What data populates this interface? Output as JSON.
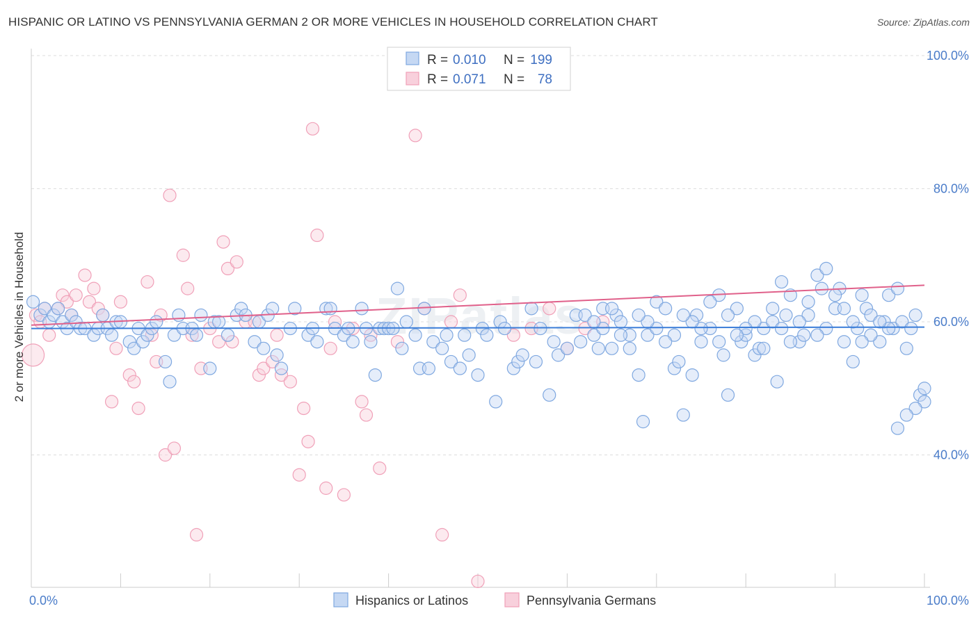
{
  "title": "HISPANIC OR LATINO VS PENNSYLVANIA GERMAN 2 OR MORE VEHICLES IN HOUSEHOLD CORRELATION CHART",
  "source": "Source: ZipAtlas.com",
  "watermark": "ZIPatlas",
  "chart_data": {
    "type": "scatter",
    "ylabel": "2 or more Vehicles in Household",
    "xlim": [
      0,
      100
    ],
    "ylim": [
      20,
      100
    ],
    "x_tick_labels": [
      "0.0%",
      "100.0%"
    ],
    "y_ticks": [
      {
        "value": 100,
        "label": "100.0%"
      },
      {
        "value": 80,
        "label": "80.0%"
      },
      {
        "value": 60,
        "label": "60.0%"
      },
      {
        "value": 40,
        "label": "40.0%"
      }
    ],
    "grid": true,
    "legend_top": {
      "rows": [
        {
          "r_label": "R =",
          "r_value": "0.010",
          "n_label": "N =",
          "n_value": "199"
        },
        {
          "r_label": "R =",
          "r_value": "0.071",
          "n_label": "N =",
          "n_value": "78"
        }
      ]
    },
    "series": [
      {
        "name": "Hispanics or Latinos",
        "color": "#7fa8e0",
        "fill": "#c5d8f3",
        "line_color": "#3b7dd8",
        "trend": {
          "x": [
            0,
            100
          ],
          "y": [
            59.0,
            59.2
          ]
        },
        "points": [
          [
            0.2,
            63
          ],
          [
            1,
            61
          ],
          [
            1.5,
            62
          ],
          [
            2,
            60
          ],
          [
            2.5,
            61
          ],
          [
            3,
            62
          ],
          [
            3.5,
            60
          ],
          [
            4,
            59
          ],
          [
            4.5,
            61
          ],
          [
            5,
            60
          ],
          [
            5.5,
            59
          ],
          [
            6,
            59
          ],
          [
            7,
            58
          ],
          [
            7.5,
            59
          ],
          [
            8,
            61
          ],
          [
            8.5,
            59
          ],
          [
            9,
            58
          ],
          [
            9.5,
            60
          ],
          [
            10,
            60
          ],
          [
            11,
            57
          ],
          [
            11.5,
            56
          ],
          [
            12,
            59
          ],
          [
            12.5,
            57
          ],
          [
            13,
            58
          ],
          [
            13.5,
            59
          ],
          [
            14,
            60
          ],
          [
            15,
            54
          ],
          [
            15.5,
            51
          ],
          [
            16,
            58
          ],
          [
            16.5,
            61
          ],
          [
            17,
            59
          ],
          [
            18,
            59
          ],
          [
            18.5,
            58
          ],
          [
            19,
            61
          ],
          [
            20,
            53
          ],
          [
            20.5,
            60
          ],
          [
            21,
            60
          ],
          [
            22,
            58
          ],
          [
            23,
            61
          ],
          [
            23.5,
            62
          ],
          [
            24,
            61
          ],
          [
            25,
            57
          ],
          [
            25.5,
            60
          ],
          [
            26,
            56
          ],
          [
            26.5,
            61
          ],
          [
            27,
            62
          ],
          [
            27.5,
            55
          ],
          [
            28,
            53
          ],
          [
            29,
            59
          ],
          [
            29.5,
            62
          ],
          [
            31,
            58
          ],
          [
            31.5,
            59
          ],
          [
            32,
            57
          ],
          [
            33,
            62
          ],
          [
            33.5,
            62
          ],
          [
            34,
            59
          ],
          [
            35,
            58
          ],
          [
            35.5,
            59
          ],
          [
            36,
            57
          ],
          [
            37,
            62
          ],
          [
            37.5,
            59
          ],
          [
            38,
            57
          ],
          [
            38.5,
            52
          ],
          [
            39,
            59
          ],
          [
            39.5,
            59
          ],
          [
            40,
            59
          ],
          [
            40.5,
            59
          ],
          [
            41,
            65
          ],
          [
            41.5,
            56
          ],
          [
            42,
            60
          ],
          [
            43,
            58
          ],
          [
            43.5,
            53
          ],
          [
            44,
            62
          ],
          [
            44.5,
            53
          ],
          [
            45,
            57
          ],
          [
            46,
            56
          ],
          [
            46.5,
            58
          ],
          [
            47,
            54
          ],
          [
            48,
            53
          ],
          [
            48.5,
            58
          ],
          [
            49,
            55
          ],
          [
            50,
            52
          ],
          [
            50.5,
            59
          ],
          [
            51,
            58
          ],
          [
            52,
            48
          ],
          [
            52.5,
            60
          ],
          [
            53,
            59
          ],
          [
            54,
            53
          ],
          [
            54.5,
            54
          ],
          [
            55,
            55
          ],
          [
            56,
            62
          ],
          [
            56.5,
            54
          ],
          [
            57,
            59
          ],
          [
            58,
            49
          ],
          [
            58.5,
            57
          ],
          [
            59,
            55
          ],
          [
            60,
            56
          ],
          [
            61,
            61
          ],
          [
            61.5,
            57
          ],
          [
            62,
            61
          ],
          [
            63,
            58
          ],
          [
            63.5,
            56
          ],
          [
            64,
            62
          ],
          [
            65,
            56
          ],
          [
            65.5,
            61
          ],
          [
            66,
            60
          ],
          [
            67,
            58
          ],
          [
            68,
            52
          ],
          [
            68.5,
            45
          ],
          [
            69,
            58
          ],
          [
            70,
            63
          ],
          [
            71,
            62
          ],
          [
            72,
            53
          ],
          [
            72.5,
            54
          ],
          [
            73,
            46
          ],
          [
            74,
            52
          ],
          [
            74.5,
            61
          ],
          [
            75,
            57
          ],
          [
            76,
            59
          ],
          [
            77,
            64
          ],
          [
            77.5,
            55
          ],
          [
            78,
            49
          ],
          [
            79,
            62
          ],
          [
            79.5,
            57
          ],
          [
            80,
            58
          ],
          [
            81,
            55
          ],
          [
            81.5,
            56
          ],
          [
            82,
            59
          ],
          [
            83,
            60
          ],
          [
            83.5,
            51
          ],
          [
            84,
            66
          ],
          [
            84.5,
            61
          ],
          [
            85,
            64
          ],
          [
            86,
            57
          ],
          [
            86.5,
            58
          ],
          [
            87,
            61
          ],
          [
            88,
            67
          ],
          [
            88.5,
            65
          ],
          [
            89,
            68
          ],
          [
            90,
            62
          ],
          [
            90.5,
            65
          ],
          [
            91,
            57
          ],
          [
            92,
            54
          ],
          [
            92.5,
            59
          ],
          [
            93,
            64
          ],
          [
            93.5,
            62
          ],
          [
            94,
            61
          ],
          [
            95,
            57
          ],
          [
            95.5,
            60
          ],
          [
            96,
            64
          ],
          [
            96.5,
            59
          ],
          [
            97,
            65
          ],
          [
            97.5,
            60
          ],
          [
            98,
            56
          ],
          [
            98.5,
            59
          ],
          [
            99,
            61
          ],
          [
            99.5,
            49
          ],
          [
            100,
            50
          ],
          [
            100,
            48
          ],
          [
            99,
            47
          ],
          [
            98,
            46
          ],
          [
            97,
            44
          ],
          [
            96,
            59
          ],
          [
            95,
            60
          ],
          [
            94,
            58
          ],
          [
            93,
            57
          ],
          [
            92,
            60
          ],
          [
            91,
            62
          ],
          [
            90,
            64
          ],
          [
            89,
            59
          ],
          [
            88,
            58
          ],
          [
            87,
            63
          ],
          [
            86,
            60
          ],
          [
            85,
            57
          ],
          [
            84,
            59
          ],
          [
            83,
            62
          ],
          [
            82,
            56
          ],
          [
            81,
            60
          ],
          [
            80,
            59
          ],
          [
            79,
            58
          ],
          [
            78,
            61
          ],
          [
            77,
            57
          ],
          [
            76,
            63
          ],
          [
            75,
            59
          ],
          [
            74,
            60
          ],
          [
            73,
            61
          ],
          [
            72,
            58
          ],
          [
            71,
            57
          ],
          [
            70,
            59
          ],
          [
            69,
            60
          ],
          [
            68,
            61
          ],
          [
            67,
            56
          ],
          [
            66,
            58
          ],
          [
            65,
            62
          ],
          [
            64,
            59
          ],
          [
            63,
            60
          ]
        ]
      },
      {
        "name": "Pennsylvania Germans",
        "color": "#f0a0b8",
        "fill": "#f8d0dc",
        "line_color": "#e0608a",
        "trend": {
          "x": [
            0,
            100
          ],
          "y": [
            59.5,
            65.5
          ]
        },
        "points": [
          [
            0.2,
            55
          ],
          [
            0.5,
            61
          ],
          [
            1,
            60
          ],
          [
            1.5,
            62
          ],
          [
            2,
            58
          ],
          [
            3,
            62
          ],
          [
            3.5,
            64
          ],
          [
            4,
            63
          ],
          [
            4.5,
            61
          ],
          [
            5,
            64
          ],
          [
            6,
            67
          ],
          [
            6.5,
            63
          ],
          [
            7,
            65
          ],
          [
            7.5,
            62
          ],
          [
            8,
            61
          ],
          [
            9,
            48
          ],
          [
            9.5,
            56
          ],
          [
            10,
            63
          ],
          [
            11,
            52
          ],
          [
            11.5,
            51
          ],
          [
            12,
            47
          ],
          [
            13,
            66
          ],
          [
            13.5,
            58
          ],
          [
            14,
            54
          ],
          [
            14.5,
            61
          ],
          [
            15,
            40
          ],
          [
            15.5,
            79
          ],
          [
            16,
            41
          ],
          [
            17,
            70
          ],
          [
            17.5,
            65
          ],
          [
            18,
            58
          ],
          [
            18.5,
            28
          ],
          [
            19,
            53
          ],
          [
            20,
            59
          ],
          [
            21,
            57
          ],
          [
            21.5,
            72
          ],
          [
            22,
            68
          ],
          [
            22.5,
            57
          ],
          [
            23,
            69
          ],
          [
            24,
            60
          ],
          [
            25,
            60
          ],
          [
            25.5,
            52
          ],
          [
            26,
            53
          ],
          [
            27,
            54
          ],
          [
            27.5,
            58
          ],
          [
            28,
            52
          ],
          [
            29,
            51
          ],
          [
            30,
            37
          ],
          [
            30.5,
            47
          ],
          [
            31,
            42
          ],
          [
            31.5,
            89
          ],
          [
            32,
            73
          ],
          [
            33,
            35
          ],
          [
            33.5,
            56
          ],
          [
            34,
            60
          ],
          [
            35,
            34
          ],
          [
            36,
            59
          ],
          [
            37,
            48
          ],
          [
            37.5,
            46
          ],
          [
            38,
            58
          ],
          [
            39,
            38
          ],
          [
            41,
            57
          ],
          [
            42,
            100
          ],
          [
            43,
            88
          ],
          [
            44,
            62
          ],
          [
            46,
            28
          ],
          [
            47,
            60
          ],
          [
            48,
            64
          ],
          [
            50,
            21
          ],
          [
            52,
            100
          ],
          [
            54,
            58
          ],
          [
            56,
            59
          ],
          [
            58,
            62
          ],
          [
            60,
            56
          ],
          [
            62,
            59
          ],
          [
            64,
            60
          ]
        ]
      }
    ]
  }
}
